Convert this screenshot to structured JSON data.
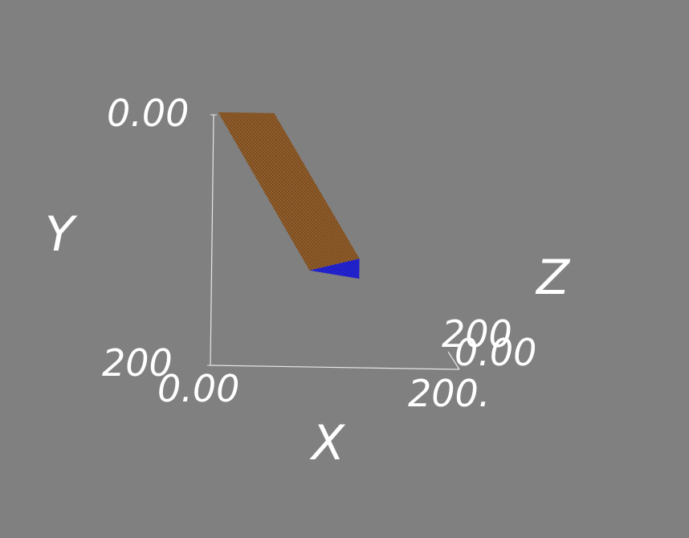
{
  "scene": {
    "background_color": "#808080",
    "axis_color": "#e6e6e6",
    "text_color": "#ffffff"
  },
  "chart_data": {
    "type": "scatter3d",
    "axes": {
      "x": {
        "label": "X",
        "range": [
          0,
          200
        ],
        "tick_labels": [
          "0.00",
          "200."
        ]
      },
      "y": {
        "label": "Y",
        "range": [
          0,
          200
        ],
        "tick_labels": [
          "0.00",
          "200"
        ]
      },
      "z": {
        "label": "Z",
        "range": [
          0,
          200
        ],
        "tick_labels": [
          "0.00",
          "200"
        ]
      }
    },
    "surfaces": [
      {
        "color": "#7a4a1c",
        "vertices": [
          [
            5,
            0,
            30
          ],
          [
            50,
            0,
            30
          ],
          [
            120,
            115,
            30
          ],
          [
            80,
            125,
            30
          ]
        ]
      },
      {
        "color": "#2222dd",
        "vertices": [
          [
            80,
            125,
            30
          ],
          [
            120,
            115,
            30
          ],
          [
            120,
            131,
            30
          ]
        ]
      }
    ]
  }
}
